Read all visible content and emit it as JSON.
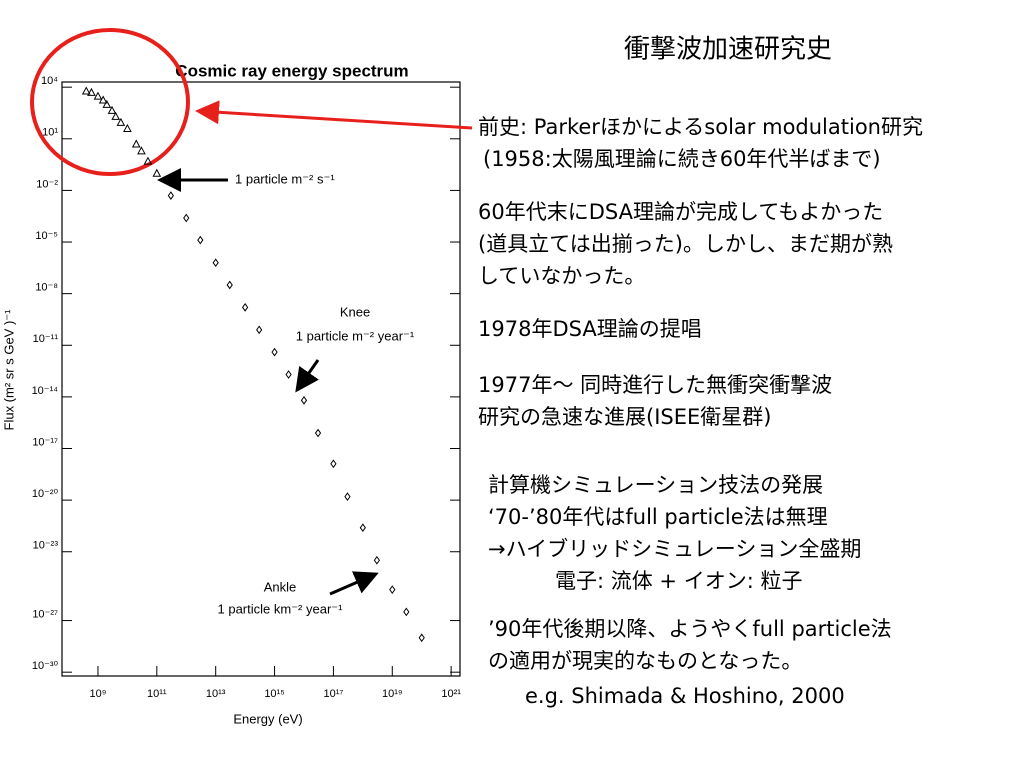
{
  "chart_data": {
    "type": "scatter",
    "title": "Cosmic ray energy spectrum",
    "x_label": "Energy (eV)",
    "y_label": "Flux (m² sr s GeV )⁻¹",
    "xscale": "log",
    "yscale": "log",
    "xlim": [
      60000000.0,
      2e+21
    ],
    "ylim": [
      6e-31,
      20000.0
    ],
    "xticks": [
      {
        "value": 1000000000.0,
        "label": "10⁹"
      },
      {
        "value": 100000000000.0,
        "label": "10¹¹"
      },
      {
        "value": 10000000000000.0,
        "label": "10¹³"
      },
      {
        "value": 1000000000000000.0,
        "label": "10¹⁵"
      },
      {
        "value": 1e+17,
        "label": "10¹⁷"
      },
      {
        "value": 1e+19,
        "label": "10¹⁹"
      },
      {
        "value": 1e+21,
        "label": "10²¹"
      }
    ],
    "yticks": [
      {
        "value": 10000.0,
        "label": "10⁴"
      },
      {
        "value": 10,
        "label": "10¹"
      },
      {
        "value": 0.01,
        "label": "10⁻²"
      },
      {
        "value": 1e-05,
        "label": "10⁻⁵"
      },
      {
        "value": 1e-08,
        "label": "10⁻⁸"
      },
      {
        "value": 1e-11,
        "label": "10⁻¹¹"
      },
      {
        "value": 1e-14,
        "label": "10⁻¹⁴"
      },
      {
        "value": 1e-17,
        "label": "10⁻¹⁷"
      },
      {
        "value": 1e-20,
        "label": "10⁻²⁰"
      },
      {
        "value": 1e-23,
        "label": "10⁻²³"
      },
      {
        "value": 1e-27,
        "label": "10⁻²⁷"
      },
      {
        "value": 1e-30,
        "label": "10⁻³⁰"
      }
    ],
    "series": [
      {
        "color": "#000000",
        "marker": "triangle",
        "x": [
          400000000.0,
          600000000.0,
          1000000000.0,
          1500000000.0,
          2000000000.0,
          3000000000.0,
          4000000000.0,
          6000000000.0,
          10000000000.0,
          20000000000.0,
          30000000000.0,
          50000000000.0,
          100000000000.0
        ],
        "values": [
          6000,
          5000,
          3000,
          1800,
          1000,
          450,
          200,
          90,
          40,
          5,
          2,
          0.5,
          0.1
        ]
      },
      {
        "color": "#000000",
        "marker": "diamond",
        "x": [
          300000000000.0,
          1000000000000.0,
          3000000000000.0,
          10000000000000.0,
          30000000000000.0,
          100000000000000.0,
          300000000000000.0,
          1000000000000000.0,
          3000000000000000.0,
          1e+16,
          3e+16,
          1e+17,
          3e+17,
          1e+18,
          3e+18,
          1e+19,
          3e+19,
          1e+20
        ],
        "values": [
          0.005,
          0.00025,
          1.3e-05,
          6.3e-07,
          3.2e-08,
          1.6e-09,
          7.9e-11,
          4e-12,
          2e-13,
          6.3e-15,
          7.9e-17,
          1.3e-18,
          1.6e-20,
          2.5e-22,
          3.2e-24,
          6.3e-26,
          3.2e-27,
          1e-28
        ]
      }
    ],
    "annotations": [
      "1 particle m⁻² s⁻¹",
      "Knee",
      "1 particle m⁻² year⁻¹",
      "Ankle",
      "1 particle km⁻² year⁻¹"
    ]
  },
  "slide": {
    "title": "衝撃波加速研究史",
    "paragraphs": [
      [
        "前史: Parkerほかによるsolar modulation研究",
        " (1958:太陽風理論に続き60年代半ばまで)"
      ],
      [
        "60年代末にDSA理論が完成してもよかった",
        "(道具立ては出揃った)。しかし、まだ期が熟",
        "していなかった。"
      ],
      [
        "1978年DSA理論の提唱"
      ],
      [
        "1977年～ 同時進行した無衝突衝撃波",
        "研究の急速な進展(ISEE衛星群)"
      ],
      [
        "計算機シミュレーション技法の発展",
        "‘70-’80年代はfull particle法は無理",
        "→ハイブリッドシミュレーション全盛期",
        "電子: 流体 + イオン: 粒子"
      ],
      [
        "’90年代後期以降、ようやくfull particle法",
        "の適用が現実的なものとなった。",
        "e.g. Shimada & Hoshino, 2000"
      ]
    ]
  }
}
